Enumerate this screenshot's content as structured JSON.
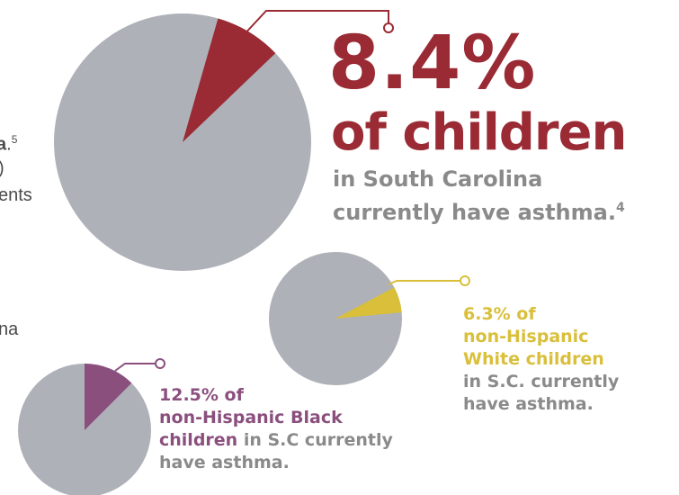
{
  "chart_data": [
    {
      "type": "pie",
      "name": "south-carolina",
      "slices": [
        {
          "label": "currently have asthma",
          "value": 8.4,
          "color": "#9a2a33"
        },
        {
          "label": "other",
          "value": 91.6,
          "color": "#aeb1b8"
        }
      ],
      "headline": "8.4%",
      "subheadline": "of children",
      "description_line1": "in South Carolina",
      "description_line2": "currently have asthma.",
      "footnote": "4"
    },
    {
      "type": "pie",
      "name": "non-hispanic-white",
      "slices": [
        {
          "label": "currently have asthma",
          "value": 6.3,
          "color": "#d9bf3a"
        },
        {
          "label": "other",
          "value": 93.7,
          "color": "#aeb1b8"
        }
      ],
      "line1": "6.3% of",
      "line2": "non-Hispanic",
      "line3": "White children",
      "line4": "in S.C. currently",
      "line5": "have asthma."
    },
    {
      "type": "pie",
      "name": "non-hispanic-black",
      "slices": [
        {
          "label": "currently have asthma",
          "value": 12.5,
          "color": "#8b4f7e"
        },
        {
          "label": "other",
          "value": 87.5,
          "color": "#aeb1b8"
        }
      ],
      "line1": "12.5% of",
      "line2": "non-Hispanic Black",
      "line3_colored": "children",
      "line3_rest": " in S.C currently",
      "line4": "have asthma."
    }
  ],
  "cutoff_text": {
    "fragment1": "a",
    "fragment1_sup": "5",
    "fragment2": ")",
    "fragment3": "ents",
    "fragment4": "na"
  },
  "colors": {
    "pie_base": "#aeb1b8",
    "crimson": "#9a2a33",
    "gold": "#d9bf3a",
    "purple": "#8b4f7e",
    "text_grey": "#8a8a8a"
  }
}
